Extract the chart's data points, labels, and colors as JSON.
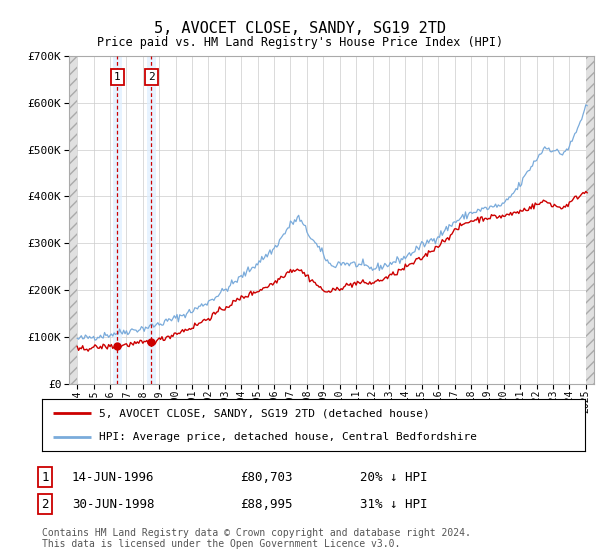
{
  "title": "5, AVOCET CLOSE, SANDY, SG19 2TD",
  "subtitle": "Price paid vs. HM Land Registry's House Price Index (HPI)",
  "legend_line1": "5, AVOCET CLOSE, SANDY, SG19 2TD (detached house)",
  "legend_line2": "HPI: Average price, detached house, Central Bedfordshire",
  "transaction1_date": "14-JUN-1996",
  "transaction1_price": "£80,703",
  "transaction1_hpi": "20% ↓ HPI",
  "transaction1_year": 1996.45,
  "transaction1_value": 80703,
  "transaction2_date": "30-JUN-1998",
  "transaction2_price": "£88,995",
  "transaction2_hpi": "31% ↓ HPI",
  "transaction2_year": 1998.5,
  "transaction2_value": 88995,
  "footer": "Contains HM Land Registry data © Crown copyright and database right 2024.\nThis data is licensed under the Open Government Licence v3.0.",
  "hpi_color": "#7aabdb",
  "price_color": "#cc0000",
  "grid_color": "#cccccc",
  "ylim": [
    0,
    700000
  ],
  "yticks": [
    0,
    100000,
    200000,
    300000,
    400000,
    500000,
    600000,
    700000
  ],
  "xlim_start": 1993.5,
  "xlim_end": 2025.5,
  "data_start": 1994.0,
  "data_end": 2025.0
}
